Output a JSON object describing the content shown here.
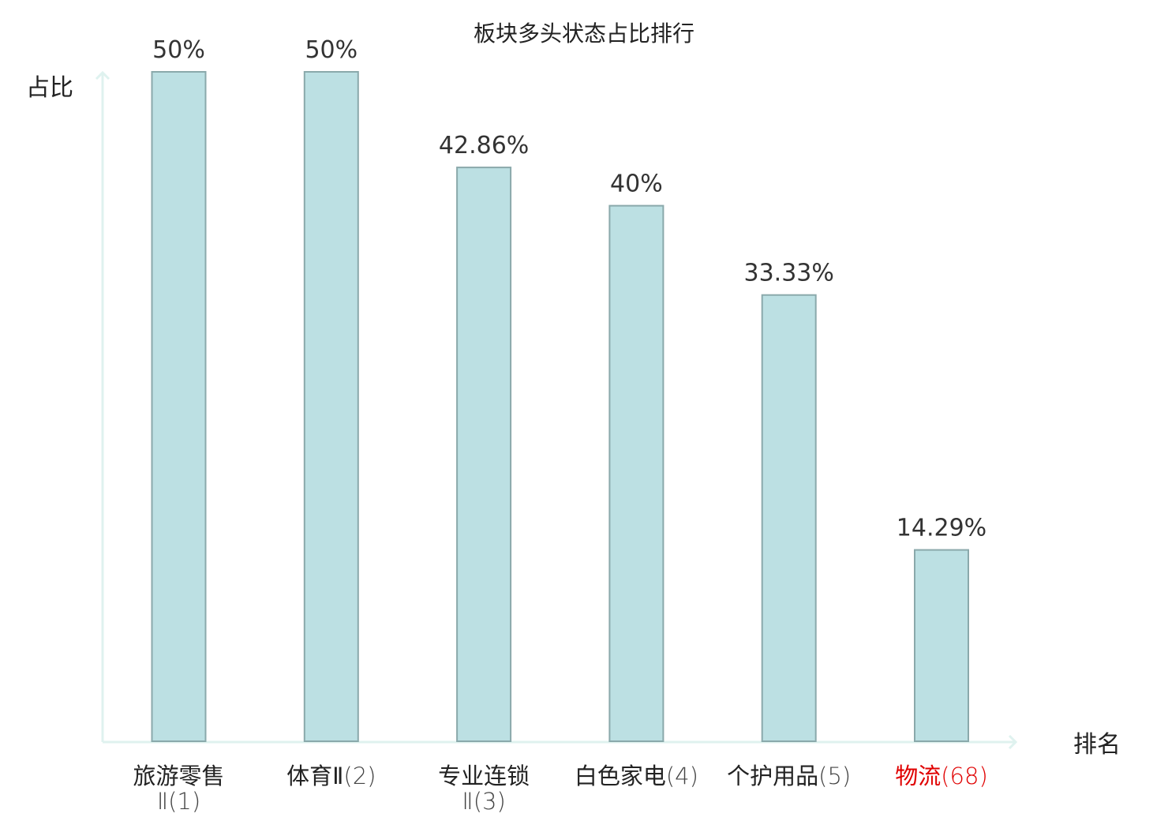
{
  "chart_data": {
    "type": "bar",
    "title": "板块多头状态占比排行",
    "ylabel": "占比",
    "xlabel": "排名",
    "ylim": [
      0,
      50
    ],
    "grid": false,
    "legend": false,
    "categories": [
      {
        "name_lines": [
          "旅游零售",
          "Ⅱ"
        ],
        "rank": "(1)"
      },
      {
        "name_lines": [
          "体育Ⅱ"
        ],
        "rank": "(2)"
      },
      {
        "name_lines": [
          "专业连锁",
          "Ⅱ"
        ],
        "rank": "(3)"
      },
      {
        "name_lines": [
          "白色家电"
        ],
        "rank": "(4)"
      },
      {
        "name_lines": [
          "个护用品"
        ],
        "rank": "(5)"
      },
      {
        "name_lines": [
          "物流"
        ],
        "rank": "(68)"
      }
    ],
    "values": [
      50,
      50,
      42.86,
      40,
      33.33,
      14.29
    ],
    "data_labels": [
      "50%",
      "50%",
      "42.86%",
      "40%",
      "33.33%",
      "14.29%"
    ],
    "highlight_index": 5
  },
  "colors": {
    "bar_fill": "#bce0e3",
    "bar_stroke": "#8aa9ab",
    "axis": "#dff2ef",
    "highlight_text": "#e00000"
  }
}
